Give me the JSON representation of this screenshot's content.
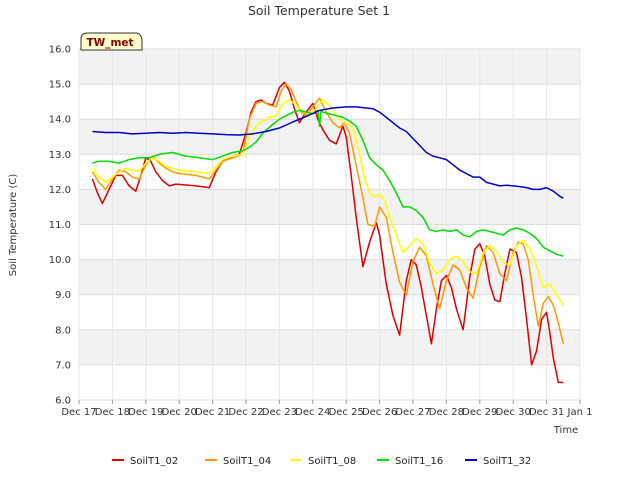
{
  "chart_data": {
    "type": "line",
    "title": "Soil Temperature Set 1",
    "xlabel": "Time",
    "ylabel": "Soil Temperature (C)",
    "badge": "TW_met",
    "ylim": [
      6.0,
      16.0
    ],
    "xlim": [
      0,
      15
    ],
    "yticks": [
      "6.0",
      "7.0",
      "8.0",
      "9.0",
      "10.0",
      "11.0",
      "12.0",
      "13.0",
      "14.0",
      "15.0",
      "16.0"
    ],
    "xticks": [
      "Dec 17",
      "Dec 18",
      "Dec 19",
      "Dec 20",
      "Dec 21",
      "Dec 22",
      "Dec 23",
      "Dec 24",
      "Dec 25",
      "Dec 26",
      "Dec 27",
      "Dec 28",
      "Dec 29",
      "Dec 30",
      "Dec 31",
      "Jan 1"
    ],
    "grid": true,
    "legend_position": "bottom",
    "series": [
      {
        "name": "SoilT1_02",
        "color": "#dd0000",
        "x": [
          0.4,
          0.55,
          0.7,
          0.9,
          1.1,
          1.3,
          1.5,
          1.7,
          1.85,
          2.0,
          2.15,
          2.3,
          2.5,
          2.7,
          2.9,
          3.5,
          3.9,
          4.1,
          4.3,
          4.5,
          4.8,
          5.0,
          5.15,
          5.3,
          5.45,
          5.6,
          5.8,
          6.0,
          6.15,
          6.3,
          6.45,
          6.6,
          6.8,
          7.0,
          7.15,
          7.3,
          7.5,
          7.7,
          7.9,
          8.0,
          8.15,
          8.3,
          8.5,
          8.7,
          8.9,
          9.0,
          9.1,
          9.2,
          9.4,
          9.6,
          9.8,
          9.95,
          10.1,
          10.25,
          10.4,
          10.55,
          10.7,
          10.85,
          11.0,
          11.15,
          11.3,
          11.5,
          11.7,
          11.85,
          12.0,
          12.15,
          12.3,
          12.45,
          12.6,
          12.75,
          12.9,
          13.1,
          13.25,
          13.4,
          13.55,
          13.7,
          13.85,
          14.0,
          14.1,
          14.2,
          14.35,
          14.5
        ],
        "y": [
          12.3,
          11.9,
          11.6,
          12.0,
          12.4,
          12.4,
          12.1,
          11.95,
          12.4,
          12.9,
          12.8,
          12.5,
          12.25,
          12.1,
          12.15,
          12.1,
          12.05,
          12.5,
          12.8,
          12.9,
          13.0,
          13.6,
          14.2,
          14.5,
          14.55,
          14.45,
          14.4,
          14.9,
          15.05,
          14.8,
          14.3,
          13.9,
          14.2,
          14.45,
          14.0,
          13.7,
          13.4,
          13.3,
          13.8,
          13.5,
          12.4,
          11.2,
          9.8,
          10.5,
          11.05,
          10.7,
          10.0,
          9.3,
          8.4,
          7.85,
          9.4,
          10.0,
          9.85,
          9.2,
          8.4,
          7.6,
          8.6,
          9.4,
          9.55,
          9.2,
          8.6,
          8.0,
          9.5,
          10.3,
          10.45,
          10.1,
          9.3,
          8.85,
          8.8,
          9.6,
          10.3,
          10.2,
          9.5,
          8.3,
          7.0,
          7.4,
          8.3,
          8.5,
          7.9,
          7.2,
          6.5,
          6.5
        ]
      },
      {
        "name": "SoilT1_04",
        "color": "#ff9900",
        "x": [
          0.4,
          0.6,
          0.8,
          1.0,
          1.2,
          1.4,
          1.6,
          1.8,
          2.0,
          2.2,
          2.4,
          2.6,
          2.8,
          3.0,
          3.5,
          3.9,
          4.1,
          4.3,
          4.6,
          4.9,
          5.1,
          5.3,
          5.5,
          5.7,
          5.9,
          6.05,
          6.2,
          6.35,
          6.5,
          6.65,
          6.8,
          7.0,
          7.2,
          7.4,
          7.6,
          7.8,
          7.95,
          8.1,
          8.25,
          8.45,
          8.65,
          8.85,
          9.0,
          9.2,
          9.4,
          9.6,
          9.8,
          10.0,
          10.2,
          10.4,
          10.6,
          10.8,
          11.0,
          11.2,
          11.4,
          11.6,
          11.8,
          12.0,
          12.2,
          12.4,
          12.6,
          12.8,
          13.0,
          13.15,
          13.3,
          13.45,
          13.6,
          13.75,
          13.9,
          14.05,
          14.2,
          14.35,
          14.5
        ],
        "y": [
          12.5,
          12.2,
          12.0,
          12.3,
          12.55,
          12.5,
          12.35,
          12.3,
          12.7,
          12.95,
          12.75,
          12.6,
          12.5,
          12.45,
          12.4,
          12.3,
          12.55,
          12.8,
          12.9,
          13.0,
          14.0,
          14.45,
          14.5,
          14.4,
          14.35,
          14.8,
          15.0,
          14.85,
          14.5,
          14.2,
          14.1,
          14.35,
          14.6,
          14.2,
          13.9,
          13.75,
          13.9,
          13.6,
          12.9,
          12.0,
          11.0,
          10.95,
          11.5,
          11.2,
          10.2,
          9.35,
          9.0,
          9.95,
          10.35,
          10.1,
          9.3,
          8.6,
          9.4,
          9.85,
          9.7,
          9.2,
          8.9,
          9.8,
          10.4,
          10.2,
          9.6,
          9.4,
          10.2,
          10.5,
          10.45,
          10.0,
          9.0,
          8.1,
          8.75,
          8.95,
          8.7,
          8.2,
          7.6
        ]
      },
      {
        "name": "SoilT1_08",
        "color": "#ffff00",
        "x": [
          0.4,
          0.6,
          0.8,
          1.0,
          1.2,
          1.4,
          1.6,
          1.8,
          2.0,
          2.2,
          2.4,
          2.6,
          2.8,
          3.0,
          3.5,
          3.9,
          4.1,
          4.3,
          4.6,
          4.9,
          5.1,
          5.3,
          5.5,
          5.7,
          5.9,
          6.1,
          6.3,
          6.5,
          6.7,
          6.9,
          7.1,
          7.3,
          7.5,
          7.7,
          7.9,
          8.1,
          8.25,
          8.4,
          8.55,
          8.7,
          8.85,
          9.0,
          9.15,
          9.3,
          9.5,
          9.7,
          9.9,
          10.1,
          10.3,
          10.5,
          10.7,
          10.9,
          11.1,
          11.3,
          11.5,
          11.7,
          11.9,
          12.1,
          12.3,
          12.5,
          12.7,
          12.9,
          13.1,
          13.3,
          13.5,
          13.7,
          13.9,
          14.1,
          14.3,
          14.5
        ],
        "y": [
          12.6,
          12.35,
          12.2,
          12.35,
          12.5,
          12.6,
          12.55,
          12.5,
          12.75,
          12.9,
          12.8,
          12.65,
          12.6,
          12.55,
          12.5,
          12.45,
          12.65,
          12.85,
          12.95,
          13.0,
          13.5,
          13.8,
          13.95,
          14.05,
          14.1,
          14.45,
          14.55,
          14.4,
          14.2,
          14.15,
          14.3,
          14.55,
          14.4,
          14.1,
          13.9,
          13.85,
          13.6,
          13.0,
          12.3,
          11.9,
          11.8,
          11.85,
          11.7,
          11.2,
          10.7,
          10.2,
          10.4,
          10.6,
          10.45,
          9.9,
          9.6,
          9.7,
          10.0,
          10.1,
          9.95,
          9.65,
          9.6,
          10.2,
          10.4,
          10.25,
          9.9,
          9.85,
          10.4,
          10.55,
          10.3,
          9.8,
          9.2,
          9.3,
          9.0,
          8.7
        ]
      },
      {
        "name": "SoilT1_16",
        "color": "#00dd00",
        "x": [
          0.4,
          0.6,
          0.9,
          1.2,
          1.5,
          1.8,
          2.1,
          2.4,
          2.8,
          3.2,
          3.6,
          4.0,
          4.3,
          4.6,
          4.9,
          5.1,
          5.3,
          5.5,
          5.8,
          6.0,
          6.2,
          6.4,
          6.6,
          6.8,
          7.0,
          7.15,
          7.2,
          7.25,
          7.3,
          7.5,
          7.7,
          7.9,
          8.1,
          8.3,
          8.5,
          8.7,
          8.9,
          9.1,
          9.3,
          9.5,
          9.7,
          9.9,
          10.1,
          10.3,
          10.5,
          10.7,
          10.9,
          11.1,
          11.3,
          11.5,
          11.7,
          11.9,
          12.1,
          12.3,
          12.5,
          12.7,
          12.9,
          13.1,
          13.3,
          13.5,
          13.7,
          13.9,
          14.1,
          14.3,
          14.5
        ],
        "y": [
          12.75,
          12.8,
          12.8,
          12.75,
          12.85,
          12.9,
          12.9,
          13.0,
          13.05,
          12.95,
          12.9,
          12.85,
          12.95,
          13.05,
          13.1,
          13.2,
          13.35,
          13.6,
          13.85,
          14.0,
          14.1,
          14.2,
          14.25,
          14.2,
          14.15,
          14.25,
          13.8,
          14.25,
          14.2,
          14.15,
          14.1,
          14.05,
          13.95,
          13.8,
          13.4,
          12.9,
          12.7,
          12.55,
          12.25,
          11.9,
          11.5,
          11.5,
          11.4,
          11.2,
          10.85,
          10.8,
          10.85,
          10.8,
          10.85,
          10.7,
          10.65,
          10.8,
          10.85,
          10.8,
          10.75,
          10.7,
          10.85,
          10.9,
          10.85,
          10.75,
          10.6,
          10.35,
          10.25,
          10.15,
          10.1
        ]
      },
      {
        "name": "SoilT1_32",
        "color": "#0000cc",
        "x": [
          0.4,
          0.8,
          1.2,
          1.6,
          2.0,
          2.4,
          2.8,
          3.2,
          3.6,
          4.0,
          4.4,
          4.8,
          5.2,
          5.6,
          6.0,
          6.4,
          6.8,
          7.2,
          7.6,
          8.0,
          8.3,
          8.6,
          8.8,
          9.0,
          9.2,
          9.4,
          9.6,
          9.8,
          10.0,
          10.2,
          10.4,
          10.6,
          10.8,
          11.0,
          11.2,
          11.4,
          11.6,
          11.8,
          12.0,
          12.2,
          12.4,
          12.6,
          12.8,
          13.0,
          13.2,
          13.4,
          13.6,
          13.8,
          14.0,
          14.2,
          14.4,
          14.5
        ],
        "y": [
          13.65,
          13.62,
          13.62,
          13.58,
          13.6,
          13.62,
          13.6,
          13.62,
          13.6,
          13.58,
          13.56,
          13.55,
          13.58,
          13.65,
          13.75,
          13.92,
          14.08,
          14.25,
          14.32,
          14.35,
          14.35,
          14.32,
          14.3,
          14.2,
          14.05,
          13.9,
          13.75,
          13.65,
          13.45,
          13.25,
          13.05,
          12.95,
          12.9,
          12.85,
          12.7,
          12.55,
          12.45,
          12.35,
          12.35,
          12.2,
          12.15,
          12.1,
          12.12,
          12.1,
          12.08,
          12.05,
          12.0,
          12.0,
          12.05,
          11.95,
          11.8,
          11.75
        ]
      }
    ]
  }
}
